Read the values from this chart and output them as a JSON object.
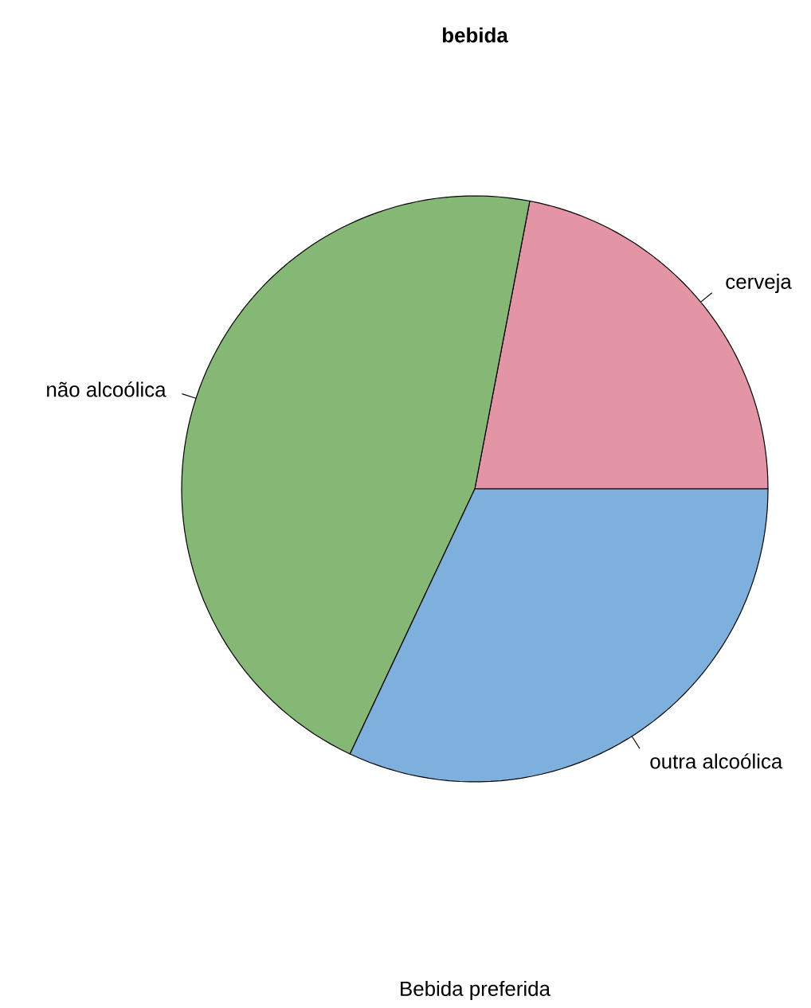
{
  "chart_data": {
    "type": "pie",
    "title": "bebida",
    "xlabel": "Bebida preferida",
    "categories": [
      "cerveja",
      "não alcoólica",
      "outra alcoólica"
    ],
    "values": [
      22,
      46,
      32
    ],
    "colors": [
      "#e495a5",
      "#86b875",
      "#7db0dd"
    ]
  }
}
